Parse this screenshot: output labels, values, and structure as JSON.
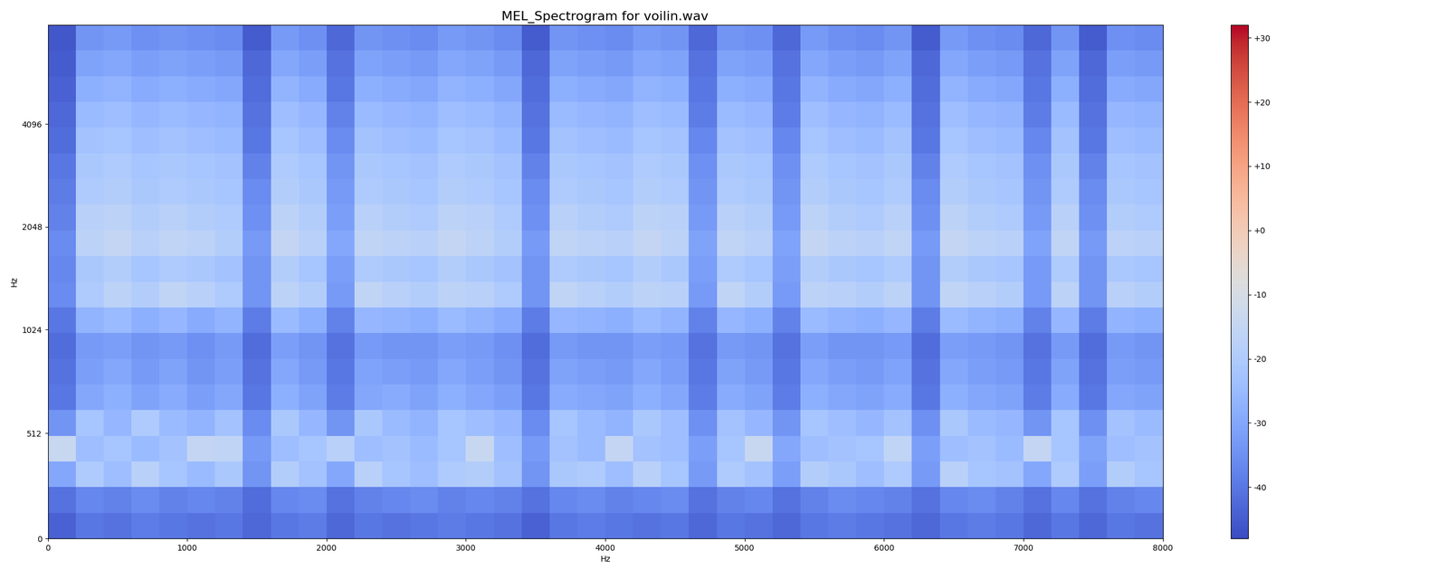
{
  "chart_data": {
    "type": "heatmap",
    "title": "MEL_Spectrogram for voilin.wav",
    "xlabel": "Hz",
    "ylabel": "Hz",
    "color": "coolwarm",
    "xlim": [
      0,
      8000
    ],
    "xticks": [
      0,
      1000,
      2000,
      3000,
      4000,
      5000,
      6000,
      7000,
      8000
    ],
    "ylim": [
      0,
      8000
    ],
    "yticks": [
      0,
      512,
      1024,
      2048,
      4096
    ],
    "x_edges": [
      0,
      200,
      400,
      600,
      800,
      1000,
      1200,
      1400,
      1600,
      1800,
      2000,
      2200,
      2400,
      2600,
      2800,
      3000,
      3200,
      3400,
      3600,
      3800,
      4000,
      4200,
      4400,
      4600,
      4800,
      5000,
      5200,
      5400,
      5600,
      5800,
      6000,
      6200,
      6400,
      6600,
      6800,
      7000,
      7200,
      7400,
      7600,
      7800,
      8000
    ],
    "y_edges": [
      0,
      125,
      250,
      375,
      500,
      625,
      750,
      875,
      1000,
      1189,
      1414,
      1682,
      2000,
      2378,
      2828,
      3364,
      4000,
      4757,
      5657,
      6727,
      8000
    ],
    "cells": [
      [
        -44,
        -40,
        -41,
        -39,
        -40,
        -41,
        -40,
        -43,
        -40,
        -39,
        -43,
        -40,
        -41,
        -40,
        -39,
        -40,
        -41,
        -44,
        -40,
        -39,
        -40,
        -41,
        -40,
        -43,
        -40,
        -41,
        -43,
        -40,
        -39,
        -40,
        -41,
        -43,
        -40,
        -39,
        -40,
        -43,
        -40,
        -43,
        -40,
        -41
      ],
      [
        -41,
        -37,
        -38,
        -36,
        -38,
        -37,
        -38,
        -42,
        -37,
        -36,
        -41,
        -38,
        -37,
        -36,
        -38,
        -37,
        -38,
        -41,
        -37,
        -36,
        -38,
        -37,
        -36,
        -41,
        -38,
        -37,
        -41,
        -38,
        -36,
        -37,
        -38,
        -41,
        -37,
        -36,
        -38,
        -41,
        -37,
        -41,
        -38,
        -37
      ],
      [
        -30,
        -20,
        -24,
        -18,
        -22,
        -25,
        -21,
        -34,
        -19,
        -23,
        -30,
        -18,
        -22,
        -24,
        -20,
        -19,
        -23,
        -34,
        -21,
        -20,
        -24,
        -18,
        -22,
        -33,
        -20,
        -23,
        -32,
        -19,
        -21,
        -24,
        -20,
        -33,
        -18,
        -22,
        -23,
        -30,
        -20,
        -32,
        -19,
        -22
      ],
      [
        -14,
        -24,
        -22,
        -25,
        -23,
        -15,
        -16,
        -33,
        -24,
        -22,
        -18,
        -24,
        -23,
        -25,
        -22,
        -14,
        -24,
        -33,
        -23,
        -25,
        -15,
        -23,
        -24,
        -32,
        -22,
        -14,
        -30,
        -24,
        -23,
        -22,
        -16,
        -32,
        -24,
        -23,
        -25,
        -15,
        -22,
        -31,
        -24,
        -23
      ],
      [
        -34,
        -22,
        -26,
        -20,
        -25,
        -27,
        -23,
        -36,
        -21,
        -26,
        -34,
        -21,
        -25,
        -27,
        -22,
        -24,
        -26,
        -36,
        -22,
        -25,
        -27,
        -21,
        -24,
        -35,
        -23,
        -26,
        -34,
        -22,
        -24,
        -26,
        -23,
        -35,
        -21,
        -25,
        -26,
        -34,
        -22,
        -35,
        -23,
        -25
      ],
      [
        -40,
        -30,
        -28,
        -31,
        -29,
        -32,
        -30,
        -40,
        -28,
        -31,
        -39,
        -30,
        -29,
        -31,
        -28,
        -30,
        -32,
        -40,
        -29,
        -30,
        -31,
        -28,
        -30,
        -39,
        -29,
        -31,
        -39,
        -28,
        -30,
        -31,
        -29,
        -40,
        -28,
        -30,
        -31,
        -39,
        -29,
        -40,
        -30,
        -31
      ],
      [
        -41,
        -32,
        -30,
        -33,
        -31,
        -34,
        -32,
        -41,
        -30,
        -33,
        -40,
        -31,
        -32,
        -33,
        -30,
        -32,
        -34,
        -41,
        -31,
        -32,
        -33,
        -30,
        -32,
        -40,
        -31,
        -33,
        -40,
        -30,
        -32,
        -33,
        -31,
        -41,
        -30,
        -32,
        -33,
        -40,
        -31,
        -41,
        -32,
        -33
      ],
      [
        -42,
        -33,
        -32,
        -34,
        -33,
        -35,
        -33,
        -42,
        -32,
        -34,
        -41,
        -33,
        -34,
        -34,
        -32,
        -33,
        -35,
        -42,
        -33,
        -34,
        -34,
        -32,
        -33,
        -41,
        -33,
        -34,
        -41,
        -32,
        -34,
        -34,
        -33,
        -42,
        -32,
        -33,
        -34,
        -41,
        -33,
        -42,
        -33,
        -34
      ],
      [
        -40,
        -27,
        -25,
        -28,
        -26,
        -29,
        -27,
        -39,
        -25,
        -28,
        -38,
        -26,
        -27,
        -28,
        -25,
        -27,
        -29,
        -39,
        -26,
        -27,
        -28,
        -25,
        -27,
        -38,
        -26,
        -28,
        -38,
        -25,
        -27,
        -28,
        -26,
        -39,
        -25,
        -27,
        -28,
        -38,
        -26,
        -39,
        -27,
        -28
      ],
      [
        -36,
        -20,
        -17,
        -19,
        -16,
        -18,
        -20,
        -34,
        -17,
        -19,
        -33,
        -16,
        -18,
        -19,
        -17,
        -18,
        -20,
        -34,
        -16,
        -18,
        -19,
        -17,
        -18,
        -33,
        -16,
        -19,
        -33,
        -17,
        -18,
        -19,
        -17,
        -34,
        -16,
        -18,
        -19,
        -33,
        -17,
        -34,
        -18,
        -19
      ],
      [
        -37,
        -21,
        -19,
        -22,
        -20,
        -21,
        -23,
        -34,
        -19,
        -22,
        -32,
        -20,
        -21,
        -22,
        -19,
        -21,
        -23,
        -34,
        -20,
        -21,
        -22,
        -19,
        -21,
        -32,
        -20,
        -22,
        -32,
        -19,
        -21,
        -22,
        -20,
        -34,
        -19,
        -21,
        -22,
        -33,
        -20,
        -34,
        -21,
        -22
      ],
      [
        -36,
        -17,
        -15,
        -18,
        -16,
        -17,
        -19,
        -33,
        -15,
        -18,
        -30,
        -16,
        -17,
        -18,
        -15,
        -17,
        -19,
        -33,
        -16,
        -17,
        -18,
        -15,
        -17,
        -31,
        -16,
        -18,
        -31,
        -15,
        -17,
        -18,
        -16,
        -33,
        -15,
        -17,
        -18,
        -31,
        -16,
        -33,
        -17,
        -18
      ],
      [
        -38,
        -18,
        -17,
        -19,
        -18,
        -19,
        -20,
        -35,
        -17,
        -19,
        -32,
        -18,
        -19,
        -20,
        -17,
        -18,
        -20,
        -35,
        -18,
        -19,
        -20,
        -17,
        -18,
        -33,
        -18,
        -19,
        -33,
        -17,
        -19,
        -20,
        -18,
        -35,
        -17,
        -19,
        -20,
        -33,
        -18,
        -35,
        -19,
        -20
      ],
      [
        -39,
        -20,
        -19,
        -21,
        -20,
        -21,
        -22,
        -36,
        -19,
        -21,
        -33,
        -20,
        -21,
        -22,
        -19,
        -20,
        -22,
        -36,
        -20,
        -21,
        -22,
        -19,
        -20,
        -34,
        -20,
        -21,
        -34,
        -19,
        -21,
        -22,
        -20,
        -36,
        -19,
        -21,
        -22,
        -34,
        -20,
        -36,
        -21,
        -22
      ],
      [
        -40,
        -21,
        -20,
        -22,
        -21,
        -22,
        -23,
        -38,
        -20,
        -22,
        -34,
        -21,
        -22,
        -23,
        -20,
        -21,
        -23,
        -38,
        -21,
        -22,
        -23,
        -20,
        -21,
        -35,
        -21,
        -22,
        -35,
        -20,
        -22,
        -23,
        -21,
        -38,
        -20,
        -22,
        -23,
        -35,
        -21,
        -38,
        -22,
        -23
      ],
      [
        -42,
        -23,
        -22,
        -24,
        -23,
        -24,
        -25,
        -40,
        -22,
        -24,
        -36,
        -23,
        -24,
        -25,
        -22,
        -23,
        -25,
        -40,
        -23,
        -24,
        -25,
        -22,
        -23,
        -37,
        -23,
        -24,
        -37,
        -22,
        -24,
        -25,
        -23,
        -40,
        -22,
        -24,
        -25,
        -37,
        -23,
        -40,
        -24,
        -25
      ],
      [
        -43,
        -25,
        -24,
        -26,
        -25,
        -26,
        -27,
        -41,
        -24,
        -26,
        -38,
        -25,
        -26,
        -27,
        -24,
        -25,
        -27,
        -41,
        -25,
        -26,
        -27,
        -24,
        -25,
        -39,
        -25,
        -26,
        -39,
        -24,
        -26,
        -27,
        -25,
        -41,
        -24,
        -26,
        -27,
        -39,
        -25,
        -41,
        -26,
        -27
      ],
      [
        -44,
        -28,
        -27,
        -29,
        -28,
        -29,
        -30,
        -42,
        -27,
        -29,
        -40,
        -28,
        -29,
        -30,
        -27,
        -28,
        -30,
        -42,
        -28,
        -29,
        -30,
        -27,
        -28,
        -40,
        -28,
        -29,
        -40,
        -27,
        -29,
        -30,
        -28,
        -42,
        -27,
        -29,
        -30,
        -40,
        -28,
        -42,
        -29,
        -30
      ],
      [
        -45,
        -31,
        -30,
        -32,
        -31,
        -32,
        -33,
        -43,
        -30,
        -32,
        -41,
        -31,
        -32,
        -33,
        -30,
        -31,
        -33,
        -43,
        -31,
        -32,
        -33,
        -30,
        -31,
        -41,
        -31,
        -32,
        -41,
        -30,
        -32,
        -33,
        -31,
        -43,
        -30,
        -32,
        -33,
        -41,
        -31,
        -43,
        -32,
        -33
      ],
      [
        -46,
        -34,
        -33,
        -35,
        -34,
        -35,
        -36,
        -45,
        -33,
        -35,
        -43,
        -34,
        -35,
        -36,
        -33,
        -34,
        -36,
        -45,
        -34,
        -35,
        -36,
        -33,
        -34,
        -43,
        -34,
        -35,
        -43,
        -33,
        -35,
        -36,
        -34,
        -45,
        -33,
        -35,
        -36,
        -43,
        -34,
        -45,
        -35,
        -36
      ]
    ],
    "colorbar": {
      "range": [
        -48,
        32
      ],
      "ticks": [
        {
          "value": 30,
          "label": "+30"
        },
        {
          "value": 20,
          "label": "+20"
        },
        {
          "value": 10,
          "label": "+10"
        },
        {
          "value": 0,
          "label": "+0"
        },
        {
          "value": -10,
          "label": "-10"
        },
        {
          "value": -20,
          "label": "-20"
        },
        {
          "value": -30,
          "label": "-30"
        },
        {
          "value": -40,
          "label": "-40"
        }
      ]
    }
  }
}
